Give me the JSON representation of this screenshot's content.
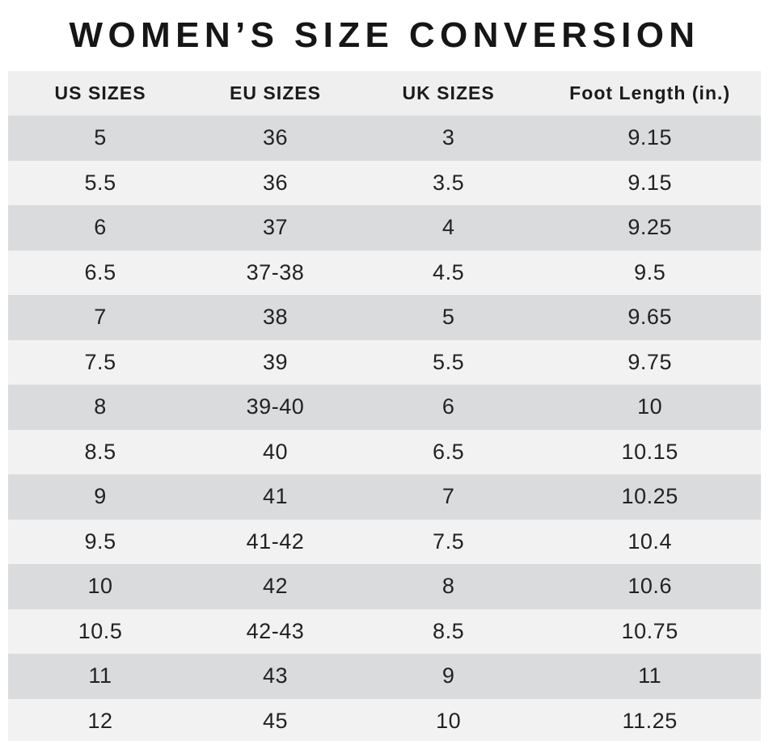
{
  "title": "WOMEN’S SIZE CONVERSION",
  "chart_data": {
    "type": "table",
    "title": "WOMEN’S SIZE CONVERSION",
    "columns": [
      "US SIZES",
      "EU SIZES",
      "UK SIZES",
      "Foot Length (in.)"
    ],
    "rows": [
      [
        "5",
        "36",
        "3",
        "9.15"
      ],
      [
        "5.5",
        "36",
        "3.5",
        "9.15"
      ],
      [
        "6",
        "37",
        "4",
        "9.25"
      ],
      [
        "6.5",
        "37-38",
        "4.5",
        "9.5"
      ],
      [
        "7",
        "38",
        "5",
        "9.65"
      ],
      [
        "7.5",
        "39",
        "5.5",
        "9.75"
      ],
      [
        "8",
        "39-40",
        "6",
        "10"
      ],
      [
        "8.5",
        "40",
        "6.5",
        "10.15"
      ],
      [
        "9",
        "41",
        "7",
        "10.25"
      ],
      [
        "9.5",
        "41-42",
        "7.5",
        "10.4"
      ],
      [
        "10",
        "42",
        "8",
        "10.6"
      ],
      [
        "10.5",
        "42-43",
        "8.5",
        "10.75"
      ],
      [
        "11",
        "43",
        "9",
        "11"
      ],
      [
        "12",
        "45",
        "10",
        "11.25"
      ]
    ],
    "layout": {
      "first_column_bold": true,
      "row_striping": "alternating starting dark",
      "alignment": "center"
    }
  },
  "colors": {
    "page_background": "#ffffff",
    "header_background": "#efefef",
    "row_dark": "#dadbdc",
    "row_light": "#f2f2f3",
    "text": "#161616"
  }
}
